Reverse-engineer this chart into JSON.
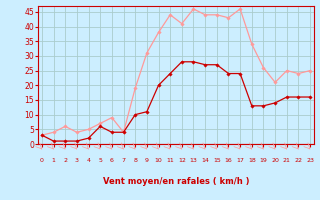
{
  "x": [
    0,
    1,
    2,
    3,
    4,
    5,
    6,
    7,
    8,
    9,
    10,
    11,
    12,
    13,
    14,
    15,
    16,
    17,
    18,
    19,
    20,
    21,
    22,
    23
  ],
  "wind_avg": [
    3,
    1,
    1,
    1,
    2,
    6,
    4,
    4,
    10,
    11,
    20,
    24,
    28,
    28,
    27,
    27,
    24,
    24,
    13,
    13,
    14,
    16,
    16,
    16
  ],
  "wind_gust": [
    3,
    4,
    6,
    4,
    5,
    7,
    9,
    4,
    19,
    31,
    38,
    44,
    41,
    46,
    44,
    44,
    43,
    46,
    34,
    26,
    21,
    25,
    24,
    25
  ],
  "xlabel": "Vent moyen/en rafales ( km/h )",
  "ylim": [
    0,
    47
  ],
  "xlim": [
    0,
    23
  ],
  "yticks": [
    0,
    5,
    10,
    15,
    20,
    25,
    30,
    35,
    40,
    45
  ],
  "xticks": [
    0,
    1,
    2,
    3,
    4,
    5,
    6,
    7,
    8,
    9,
    10,
    11,
    12,
    13,
    14,
    15,
    16,
    17,
    18,
    19,
    20,
    21,
    22,
    23
  ],
  "bg_color": "#cceeff",
  "grid_color": "#aacccc",
  "line_avg_color": "#cc0000",
  "line_gust_color": "#ff9999",
  "tick_label_color": "#cc0000",
  "xlabel_color": "#cc0000",
  "axis_color": "#cc0000",
  "marker_size": 1.8,
  "linewidth": 0.9
}
